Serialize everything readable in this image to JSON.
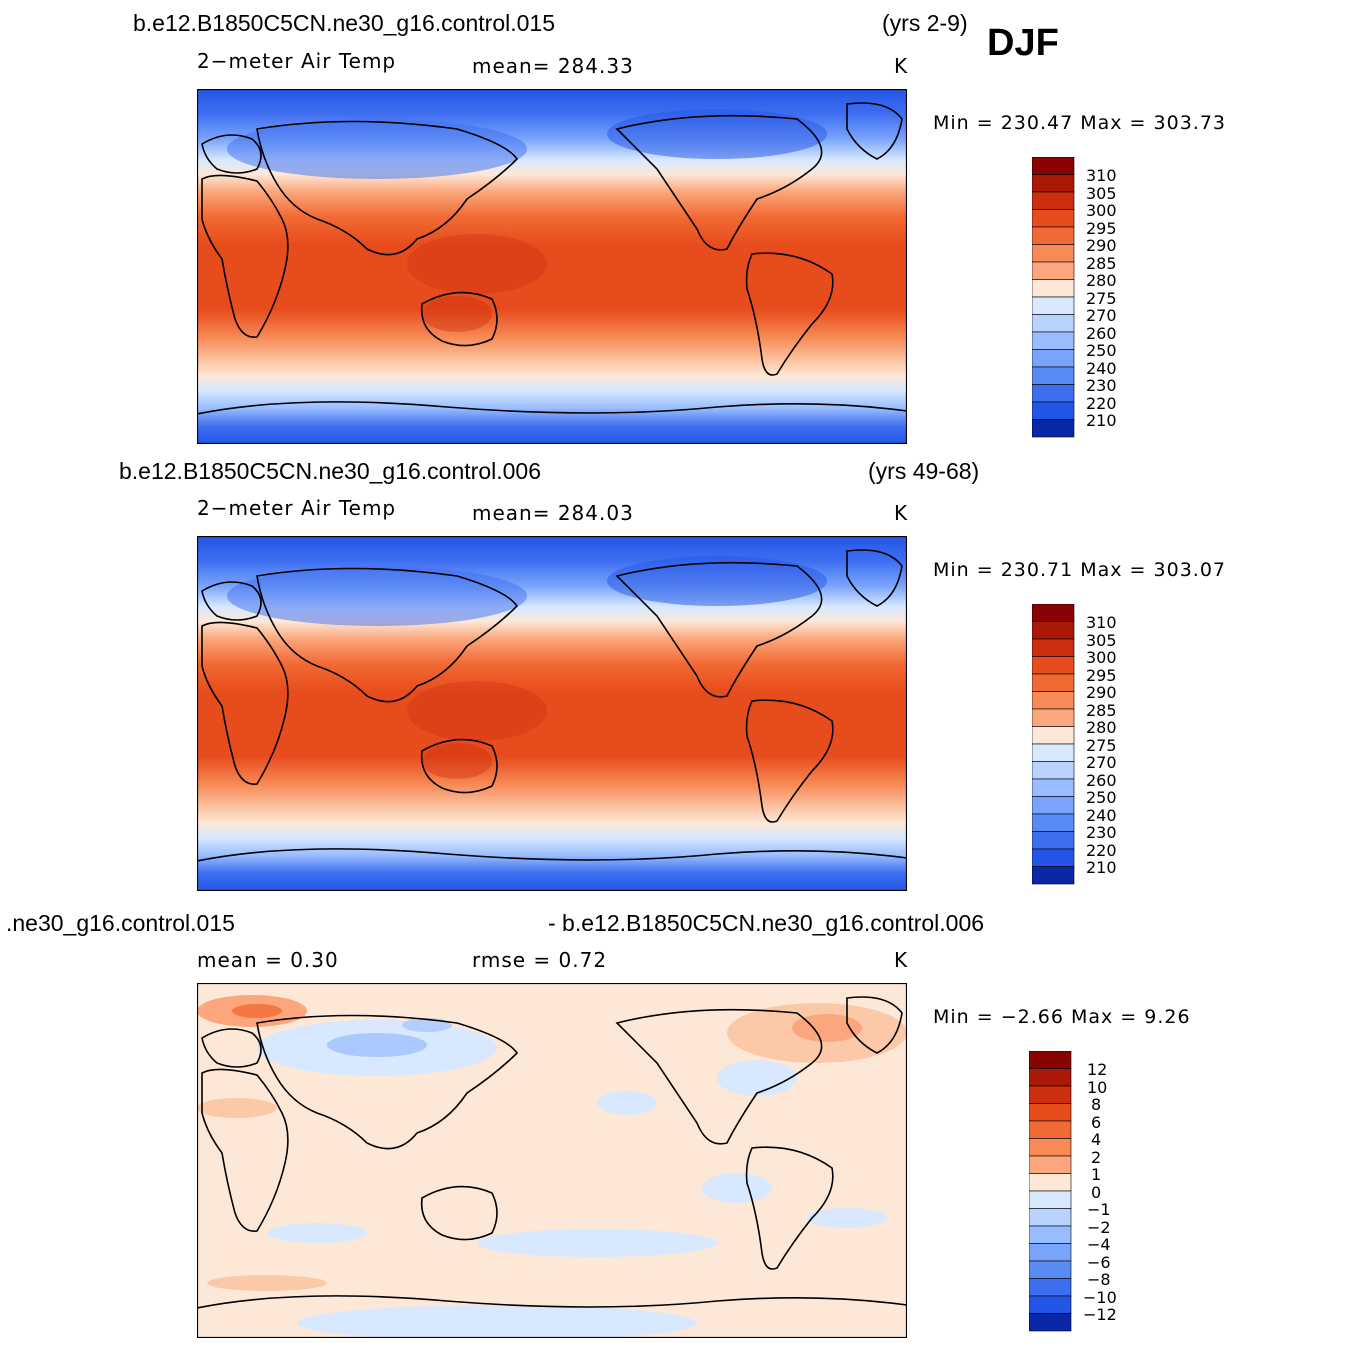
{
  "season": "DJF",
  "colors": {
    "warm": [
      "#fde8d8",
      "#fcc9a8",
      "#fba67c",
      "#f78a56",
      "#f26a33",
      "#e74c1c",
      "#cc2e10",
      "#aa1808",
      "#8a0303"
    ],
    "cool": [
      "#d7e8ff",
      "#b9d3ff",
      "#98bcff",
      "#78a4fb",
      "#5a8af4",
      "#3e6ef0",
      "#2356e6",
      "#113fd4",
      "#0828a8",
      "#050f80"
    ]
  },
  "panels": [
    {
      "case_title": "b.e12.B1850C5CN.ne30_g16.control.015",
      "years": "(yrs 2-9)",
      "variable": "2−meter Air Temp",
      "stat1": "mean=  284.33",
      "stat2": "",
      "units": "K",
      "minmax": "Min  =  230.47  Max  =  303.73",
      "colorbar_labels": [
        "310",
        "305",
        "300",
        "295",
        "290",
        "285",
        "280",
        "275",
        "270",
        "260",
        "250",
        "240",
        "230",
        "220",
        "210"
      ]
    },
    {
      "case_title": "b.e12.B1850C5CN.ne30_g16.control.006",
      "years": "(yrs 49-68)",
      "variable": "2−meter Air Temp",
      "stat1": "mean=  284.03",
      "stat2": "",
      "units": "K",
      "minmax": "Min  =  230.71  Max  =  303.07",
      "colorbar_labels": [
        "310",
        "305",
        "300",
        "295",
        "290",
        "285",
        "280",
        "275",
        "270",
        "260",
        "250",
        "240",
        "230",
        "220",
        "210"
      ]
    },
    {
      "case_title": ".ne30_g16.control.015",
      "years": "- b.e12.B1850C5CN.ne30_g16.control.006",
      "variable": "",
      "stat1": "mean  =     0.30",
      "stat2": "rmse  =     0.72",
      "units": "K",
      "minmax": "Min  =    −2.66  Max  =      9.26",
      "colorbar_labels": [
        "12",
        "10",
        "8",
        "6",
        "4",
        "2",
        "1",
        "0",
        "−1",
        "−2",
        "−4",
        "−6",
        "−8",
        "−10",
        "−12"
      ]
    }
  ]
}
